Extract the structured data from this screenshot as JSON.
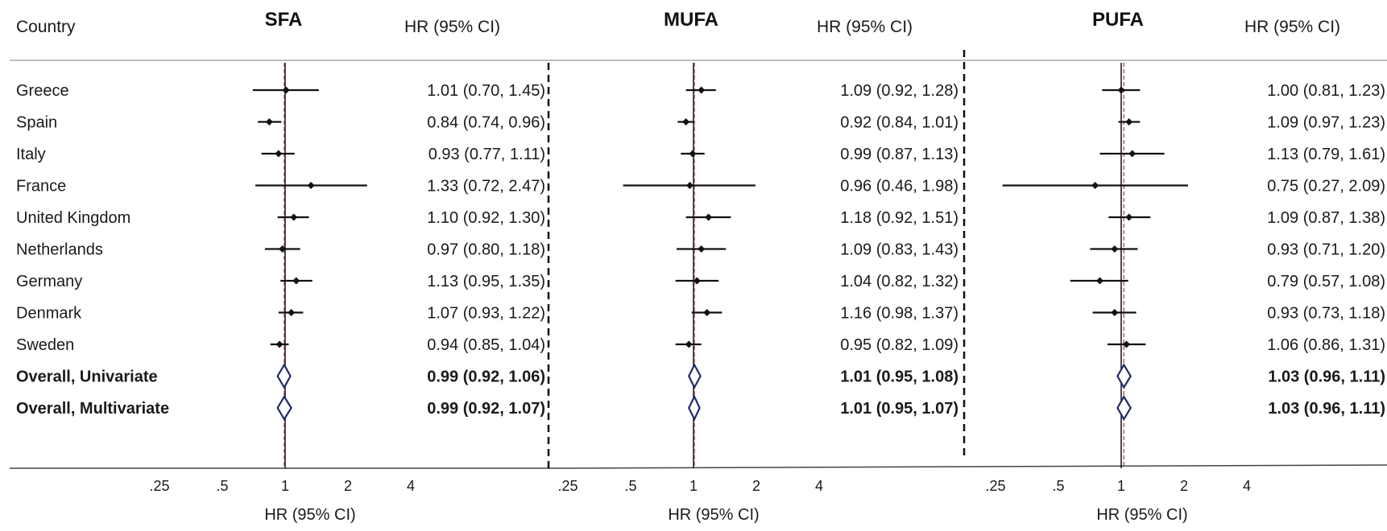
{
  "header": {
    "country_label": "Country",
    "panel_titles": [
      "SFA",
      "MUFA",
      "PUFA"
    ],
    "hr_label": "HR (95% CI)"
  },
  "axis": {
    "tick_labels": [
      ".25",
      ".5",
      "1",
      "2",
      "4"
    ],
    "xlabel": "HR (95% CI)"
  },
  "colors": {
    "point": "#111111",
    "overall_diamond": "#1f2a6e",
    "reference_line": "#b04a5a",
    "null_line": "#111111"
  },
  "rows": [
    "Greece",
    "Spain",
    "Italy",
    "France",
    "United Kingdom",
    "Netherlands",
    "Germany",
    "Denmark",
    "Sweden",
    "Overall, Univariate",
    "Overall, Multivariate"
  ],
  "chart_data": [
    {
      "type": "forest",
      "title": "SFA",
      "xlabel": "HR (95% CI)",
      "xscale": "log",
      "xticks": [
        0.25,
        0.5,
        1,
        2,
        4
      ],
      "reference_line": 0.99,
      "estimates": [
        {
          "label": "Greece",
          "hr": 1.01,
          "lo": 0.7,
          "hi": 1.45,
          "text": "1.01 (0.70, 1.45)"
        },
        {
          "label": "Spain",
          "hr": 0.84,
          "lo": 0.74,
          "hi": 0.96,
          "text": "0.84 (0.74, 0.96)"
        },
        {
          "label": "Italy",
          "hr": 0.93,
          "lo": 0.77,
          "hi": 1.11,
          "text": "0.93 (0.77, 1.11)"
        },
        {
          "label": "France",
          "hr": 1.33,
          "lo": 0.72,
          "hi": 2.47,
          "text": "1.33 (0.72, 2.47)"
        },
        {
          "label": "United Kingdom",
          "hr": 1.1,
          "lo": 0.92,
          "hi": 1.3,
          "text": "1.10 (0.92, 1.30)"
        },
        {
          "label": "Netherlands",
          "hr": 0.97,
          "lo": 0.8,
          "hi": 1.18,
          "text": "0.97 (0.80, 1.18)"
        },
        {
          "label": "Germany",
          "hr": 1.13,
          "lo": 0.95,
          "hi": 1.35,
          "text": "1.13 (0.95, 1.35)"
        },
        {
          "label": "Denmark",
          "hr": 1.07,
          "lo": 0.93,
          "hi": 1.22,
          "text": "1.07 (0.93, 1.22)"
        },
        {
          "label": "Sweden",
          "hr": 0.94,
          "lo": 0.85,
          "hi": 1.04,
          "text": "0.94 (0.85, 1.04)"
        },
        {
          "label": "Overall, Univariate",
          "hr": 0.99,
          "lo": 0.92,
          "hi": 1.06,
          "text": "0.99 (0.92, 1.06)",
          "overall": true
        },
        {
          "label": "Overall, Multivariate",
          "hr": 0.99,
          "lo": 0.92,
          "hi": 1.07,
          "text": "0.99 (0.92, 1.07)",
          "overall": true
        }
      ]
    },
    {
      "type": "forest",
      "title": "MUFA",
      "xlabel": "HR (95% CI)",
      "xscale": "log",
      "xticks": [
        0.25,
        0.5,
        1,
        2,
        4
      ],
      "reference_line": 1.01,
      "estimates": [
        {
          "label": "Greece",
          "hr": 1.09,
          "lo": 0.92,
          "hi": 1.28,
          "text": "1.09 (0.92, 1.28)"
        },
        {
          "label": "Spain",
          "hr": 0.92,
          "lo": 0.84,
          "hi": 1.01,
          "text": "0.92 (0.84, 1.01)"
        },
        {
          "label": "Italy",
          "hr": 0.99,
          "lo": 0.87,
          "hi": 1.13,
          "text": "0.99 (0.87, 1.13)"
        },
        {
          "label": "France",
          "hr": 0.96,
          "lo": 0.46,
          "hi": 1.98,
          "text": "0.96 (0.46, 1.98)"
        },
        {
          "label": "United Kingdom",
          "hr": 1.18,
          "lo": 0.92,
          "hi": 1.51,
          "text": "1.18 (0.92, 1.51)"
        },
        {
          "label": "Netherlands",
          "hr": 1.09,
          "lo": 0.83,
          "hi": 1.43,
          "text": "1.09 (0.83, 1.43)"
        },
        {
          "label": "Germany",
          "hr": 1.04,
          "lo": 0.82,
          "hi": 1.32,
          "text": "1.04 (0.82, 1.32)"
        },
        {
          "label": "Denmark",
          "hr": 1.16,
          "lo": 0.98,
          "hi": 1.37,
          "text": "1.16 (0.98, 1.37)"
        },
        {
          "label": "Sweden",
          "hr": 0.95,
          "lo": 0.82,
          "hi": 1.09,
          "text": "0.95 (0.82, 1.09)"
        },
        {
          "label": "Overall, Univariate",
          "hr": 1.01,
          "lo": 0.95,
          "hi": 1.08,
          "text": "1.01 (0.95, 1.08)",
          "overall": true
        },
        {
          "label": "Overall, Multivariate",
          "hr": 1.01,
          "lo": 0.95,
          "hi": 1.07,
          "text": "1.01 (0.95, 1.07)",
          "overall": true
        }
      ]
    },
    {
      "type": "forest",
      "title": "PUFA",
      "xlabel": "HR (95% CI)",
      "xscale": "log",
      "xticks": [
        0.25,
        0.5,
        1,
        2,
        4
      ],
      "reference_line": 1.03,
      "estimates": [
        {
          "label": "Greece",
          "hr": 1.0,
          "lo": 0.81,
          "hi": 1.23,
          "text": "1.00 (0.81, 1.23)"
        },
        {
          "label": "Spain",
          "hr": 1.09,
          "lo": 0.97,
          "hi": 1.23,
          "text": "1.09 (0.97, 1.23)"
        },
        {
          "label": "Italy",
          "hr": 1.13,
          "lo": 0.79,
          "hi": 1.61,
          "text": "1.13 (0.79, 1.61)"
        },
        {
          "label": "France",
          "hr": 0.75,
          "lo": 0.27,
          "hi": 2.09,
          "text": "0.75 (0.27, 2.09)"
        },
        {
          "label": "United Kingdom",
          "hr": 1.09,
          "lo": 0.87,
          "hi": 1.38,
          "text": "1.09 (0.87, 1.38)"
        },
        {
          "label": "Netherlands",
          "hr": 0.93,
          "lo": 0.71,
          "hi": 1.2,
          "text": "0.93 (0.71, 1.20)"
        },
        {
          "label": "Germany",
          "hr": 0.79,
          "lo": 0.57,
          "hi": 1.08,
          "text": "0.79 (0.57, 1.08)"
        },
        {
          "label": "Denmark",
          "hr": 0.93,
          "lo": 0.73,
          "hi": 1.18,
          "text": "0.93 (0.73, 1.18)"
        },
        {
          "label": "Sweden",
          "hr": 1.06,
          "lo": 0.86,
          "hi": 1.31,
          "text": "1.06 (0.86, 1.31)"
        },
        {
          "label": "Overall, Univariate",
          "hr": 1.03,
          "lo": 0.96,
          "hi": 1.11,
          "text": "1.03 (0.96, 1.11)",
          "overall": true
        },
        {
          "label": "Overall, Multivariate",
          "hr": 1.03,
          "lo": 0.96,
          "hi": 1.11,
          "text": "1.03 (0.96, 1.11)",
          "overall": true
        }
      ]
    }
  ]
}
